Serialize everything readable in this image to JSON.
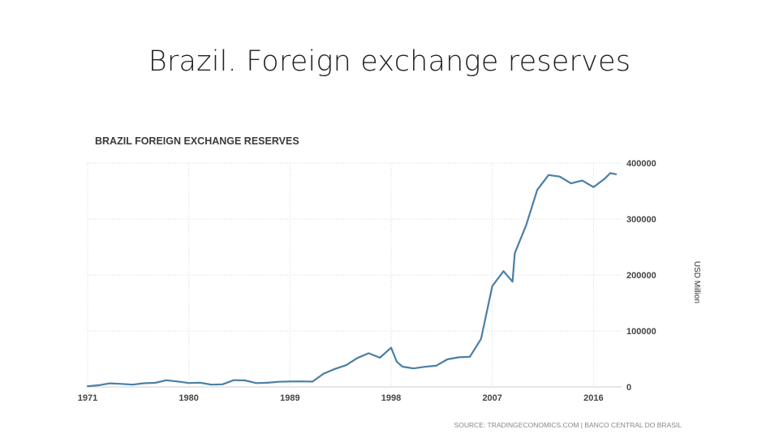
{
  "slide": {
    "title": "Brazil. Foreign exchange reserves"
  },
  "chart_data": {
    "type": "line",
    "title": "BRAZIL FOREIGN EXCHANGE RESERVES",
    "ylabel": "USD Million",
    "xlabel": "",
    "source": "SOURCE: TRADINGECONOMICS.COM | BANCO CENTRAL DO BRASIL",
    "xlim": [
      1971,
      2018.5
    ],
    "ylim": [
      0,
      400000
    ],
    "x_ticks": [
      1971,
      1980,
      1989,
      1998,
      2007,
      2016
    ],
    "y_ticks": [
      0,
      100000,
      200000,
      300000,
      400000
    ],
    "grid": true,
    "y_axis_side": "right",
    "series": [
      {
        "color": "#4a7fa5",
        "points": [
          [
            1971,
            1200
          ],
          [
            1972,
            3000
          ],
          [
            1973,
            6400
          ],
          [
            1974,
            5300
          ],
          [
            1975,
            4000
          ],
          [
            1976,
            6500
          ],
          [
            1977,
            7200
          ],
          [
            1978,
            11900
          ],
          [
            1979,
            9700
          ],
          [
            1980,
            7000
          ],
          [
            1981,
            7500
          ],
          [
            1982,
            4000
          ],
          [
            1983,
            4600
          ],
          [
            1984,
            12000
          ],
          [
            1985,
            11600
          ],
          [
            1986,
            6800
          ],
          [
            1987,
            7400
          ],
          [
            1988,
            9100
          ],
          [
            1989,
            9700
          ],
          [
            1990,
            9900
          ],
          [
            1991,
            9400
          ],
          [
            1992,
            23800
          ],
          [
            1993,
            32200
          ],
          [
            1994,
            38800
          ],
          [
            1995,
            51800
          ],
          [
            1996,
            60100
          ],
          [
            1997,
            52200
          ],
          [
            1998,
            70000
          ],
          [
            1998.5,
            45000
          ],
          [
            1999,
            36300
          ],
          [
            2000,
            33000
          ],
          [
            2001,
            35900
          ],
          [
            2002,
            37800
          ],
          [
            2003,
            49300
          ],
          [
            2004,
            52900
          ],
          [
            2005,
            53800
          ],
          [
            2006,
            85800
          ],
          [
            2007,
            180300
          ],
          [
            2008,
            206800
          ],
          [
            2008.8,
            188000
          ],
          [
            2009,
            239000
          ],
          [
            2010,
            288600
          ],
          [
            2011,
            352000
          ],
          [
            2012,
            378600
          ],
          [
            2013,
            375800
          ],
          [
            2014,
            363600
          ],
          [
            2015,
            368700
          ],
          [
            2016,
            357000
          ],
          [
            2017,
            372000
          ],
          [
            2017.5,
            382000
          ],
          [
            2018,
            380000
          ]
        ]
      }
    ]
  }
}
